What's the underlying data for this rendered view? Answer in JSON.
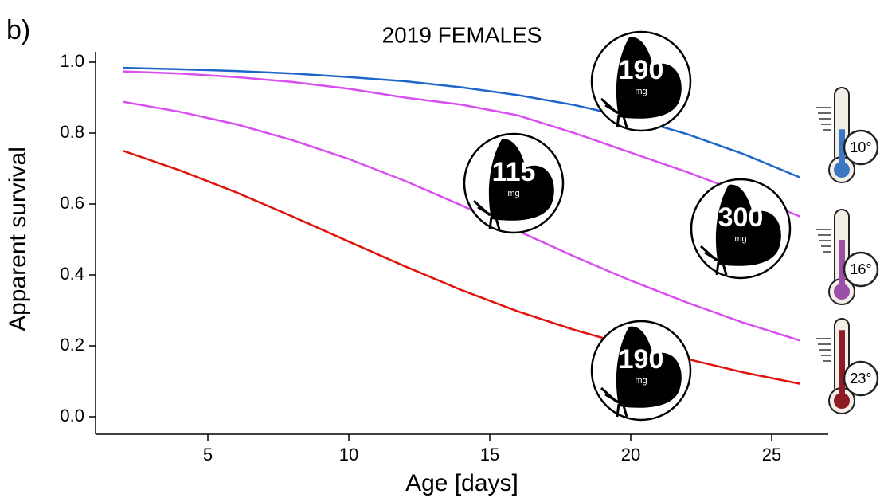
{
  "chart_data": {
    "type": "line",
    "panel_label": "b)",
    "title": "2019 FEMALES",
    "x_label": "Age [days]",
    "y_label": "Apparent survival",
    "x": [
      2,
      4,
      6,
      8,
      10,
      12,
      14,
      16,
      18,
      20,
      22,
      24,
      26
    ],
    "series": [
      {
        "color": "#1f66c9",
        "values": [
          0.984,
          0.98,
          0.975,
          0.968,
          0.958,
          0.946,
          0.929,
          0.907,
          0.879,
          0.843,
          0.797,
          0.741,
          0.675
        ]
      },
      {
        "color": "#d84fef",
        "values": [
          0.974,
          0.968,
          0.958,
          0.944,
          0.925,
          0.9,
          0.88,
          0.85,
          0.8,
          0.745,
          0.69,
          0.63,
          0.565
        ]
      },
      {
        "color": "#d84fef",
        "values": [
          0.888,
          0.86,
          0.825,
          0.78,
          0.727,
          0.665,
          0.596,
          0.524,
          0.452,
          0.384,
          0.322,
          0.265,
          0.215
        ]
      },
      {
        "color": "#e0140c",
        "values": [
          0.75,
          0.695,
          0.633,
          0.565,
          0.494,
          0.424,
          0.357,
          0.297,
          0.245,
          0.2,
          0.163,
          0.125,
          0.093
        ]
      }
    ],
    "xlim": [
      1,
      27
    ],
    "ylim": [
      -0.05,
      1.03
    ],
    "xticks": [
      5,
      10,
      15,
      20,
      25
    ],
    "yticks": [
      {
        "value": 0,
        "label": "0.0"
      },
      {
        "value": 0.2,
        "label": "0.2"
      },
      {
        "value": 0.4,
        "label": "0.4"
      },
      {
        "value": 0.6,
        "label": "0.6"
      },
      {
        "value": 0.8,
        "label": "0.8"
      },
      {
        "value": 1,
        "label": "1.0"
      }
    ],
    "butterflies": [
      {
        "mass": "190",
        "unit": "mg"
      },
      {
        "mass": "115",
        "unit": "mg"
      },
      {
        "mass": "300",
        "unit": "mg"
      },
      {
        "mass": "190",
        "unit": "mg"
      }
    ],
    "thermometers": [
      {
        "label": "10°",
        "color": "#3b78c4"
      },
      {
        "label": "16°",
        "color": "#9a4fa8"
      },
      {
        "label": "23°",
        "color": "#8e1b24"
      }
    ]
  }
}
